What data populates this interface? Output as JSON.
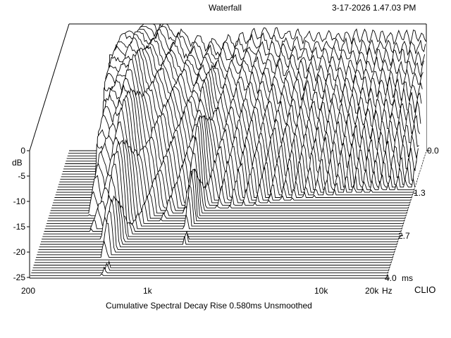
{
  "header": {
    "title": "Waterfall",
    "timestamp": "3-17-2026 1.47.03 PM"
  },
  "footer": {
    "caption": "Cumulative Spectral Decay   Rise 0.580ms   Unsmoothed",
    "brand": "CLIO"
  },
  "chart_data": {
    "type": "waterfall",
    "title": "Waterfall",
    "x_axis": {
      "label": "Hz",
      "scale": "log",
      "range": [
        200,
        20000
      ],
      "ticks": [
        "200",
        "1k",
        "10k",
        "20k"
      ]
    },
    "y_axis": {
      "label": "dB",
      "range": [
        -25,
        0
      ],
      "ticks": [
        "0",
        "-5",
        "-10",
        "-15",
        "-20",
        "-25"
      ]
    },
    "z_axis": {
      "label": "ms",
      "range": [
        0,
        4.0
      ],
      "ticks": [
        "0.0",
        "1.3",
        "2.7",
        "4.0"
      ]
    },
    "slices": 50,
    "rise_ms": 0.58,
    "smoothing": "Unsmoothed"
  }
}
